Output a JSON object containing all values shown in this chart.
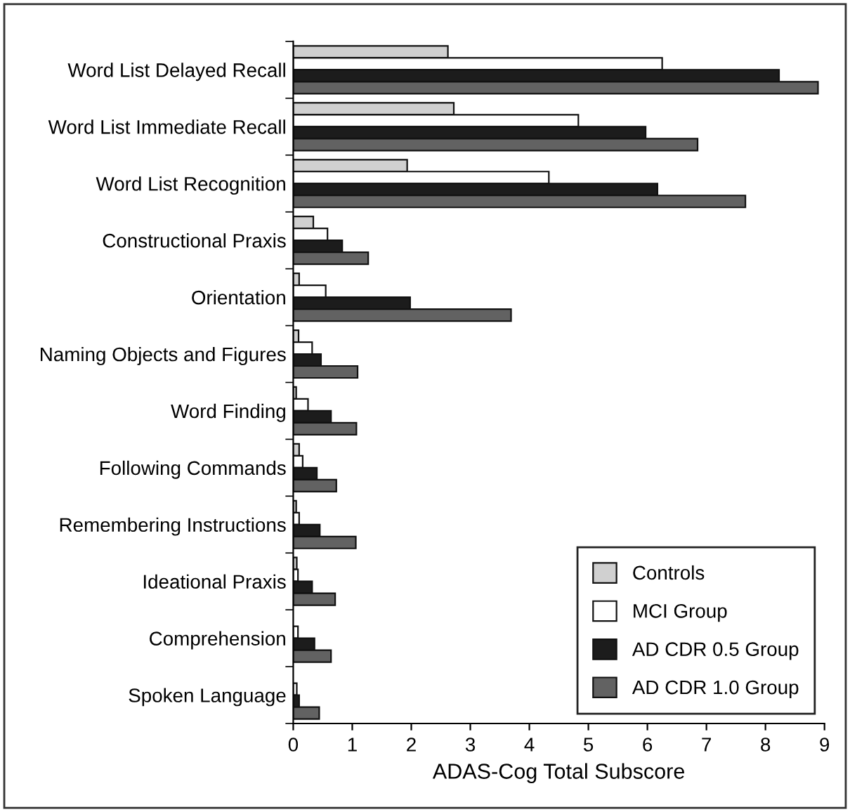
{
  "chart_data": {
    "type": "bar",
    "orientation": "horizontal",
    "xlabel": "ADAS-Cog Total Subscore",
    "categories": [
      "Word List Delayed Recall",
      "Word List Immediate Recall",
      "Word List Recognition",
      "Constructional Praxis",
      "Orientation",
      "Naming Objects and Figures",
      "Word Finding",
      "Following Commands",
      "Remembering Instructions",
      "Ideational Praxis",
      "Comprehension",
      "Spoken Language"
    ],
    "series": [
      {
        "name": "Controls",
        "color": "#d0d0d0",
        "values": [
          2.62,
          2.72,
          1.93,
          0.34,
          0.1,
          0.09,
          0.05,
          0.1,
          0.05,
          0.06,
          null,
          null
        ]
      },
      {
        "name": "MCI Group",
        "color": "#ffffff",
        "values": [
          6.25,
          4.83,
          4.33,
          0.58,
          0.55,
          0.32,
          0.25,
          0.16,
          0.1,
          0.08,
          0.08,
          0.06
        ]
      },
      {
        "name": "AD CDR 0.5 Group",
        "color": "#1c1c1c",
        "values": [
          8.23,
          5.97,
          6.17,
          0.83,
          1.98,
          0.47,
          0.64,
          0.4,
          0.45,
          0.32,
          0.36,
          0.1
        ]
      },
      {
        "name": "AD CDR 1.0 Group",
        "color": "#626262",
        "values": [
          8.89,
          6.85,
          7.66,
          1.27,
          3.69,
          1.09,
          1.07,
          0.73,
          1.06,
          0.71,
          0.64,
          0.44
        ]
      }
    ],
    "xlim": [
      0,
      9
    ],
    "xticks": [
      0,
      1,
      2,
      3,
      4,
      5,
      6,
      7,
      8,
      9
    ],
    "grid": false,
    "legend": "bottom right"
  }
}
